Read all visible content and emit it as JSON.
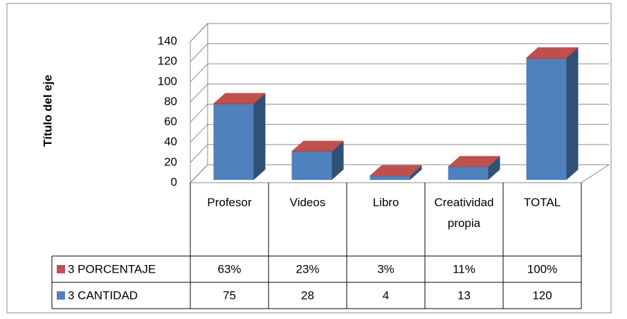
{
  "chart_data": {
    "type": "bar3d_stacked",
    "y_axis_title": "Título del eje",
    "categories": [
      "Profesor",
      "Videos",
      "Libro",
      "Creatividad propia",
      "TOTAL"
    ],
    "series": [
      {
        "name": "3 PORCENTAJE",
        "color": "#c0504d",
        "values": [
          0.63,
          0.23,
          0.03,
          0.11,
          1.0
        ],
        "value_labels": [
          "63%",
          "23%",
          "3%",
          "11%",
          "100%"
        ]
      },
      {
        "name": "3 CANTIDAD",
        "color": "#4f81bd",
        "values": [
          75,
          28,
          4,
          13,
          120
        ]
      }
    ],
    "ylim": [
      0,
      140
    ],
    "yticks": [
      0,
      20,
      40,
      60,
      80,
      100,
      120,
      140
    ],
    "grid": true,
    "data_table": true
  }
}
